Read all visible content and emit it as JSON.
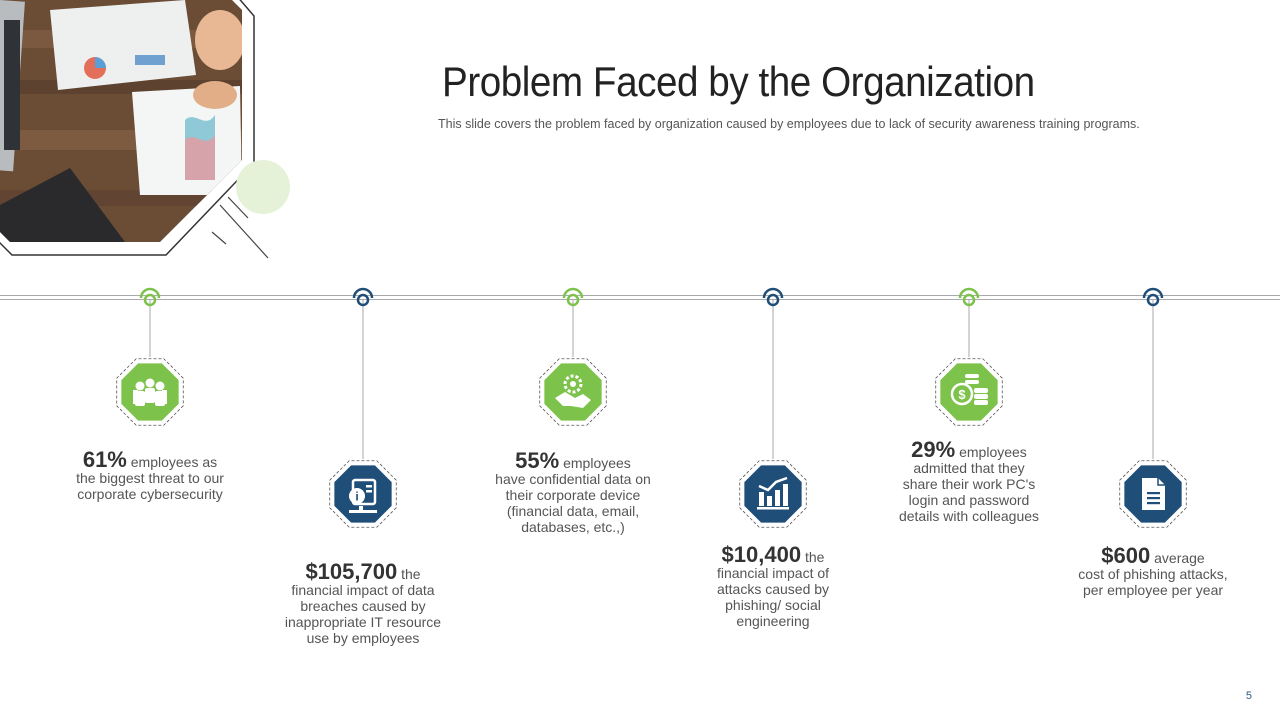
{
  "slide": {
    "title": "Problem Faced by the Organization",
    "subtitle": "This slide covers the problem faced by organization caused by employees due to lack  of security awareness  training programs.",
    "page_number": "5"
  },
  "colors": {
    "green": "#7dc24b",
    "navy": "#1f4e79",
    "line": "#a8aaad",
    "light_green_circle": "#e5f2d8"
  },
  "items": [
    {
      "value": "61%",
      "text_lead": " employees as",
      "text_rest": "the biggest threat to our corporate cybersecurity",
      "icon": "team-icon",
      "color": "green"
    },
    {
      "value": "$105,700",
      "text_lead": " the",
      "text_rest": "financial impact of data breaches caused by inappropriate IT resource use by employees",
      "icon": "it-resource-icon",
      "color": "navy"
    },
    {
      "value": "55%",
      "text_lead": " employees",
      "text_rest": "have confidential data on their corporate device (financial data, email, databases, etc.,)",
      "icon": "handshake-gear-icon",
      "color": "green"
    },
    {
      "value": "$10,400",
      "text_lead": " the",
      "text_rest": "financial impact of attacks caused by phishing/ social engineering",
      "icon": "bar-chart-icon",
      "color": "navy"
    },
    {
      "value": "29%",
      "text_lead": " employees",
      "text_rest": "admitted that they share their work PC's login and password details with colleagues",
      "icon": "coins-icon",
      "color": "green"
    },
    {
      "value": "$600",
      "text_lead": " average",
      "text_rest": "cost of phishing attacks, per employee per year",
      "icon": "document-icon",
      "color": "navy"
    }
  ]
}
